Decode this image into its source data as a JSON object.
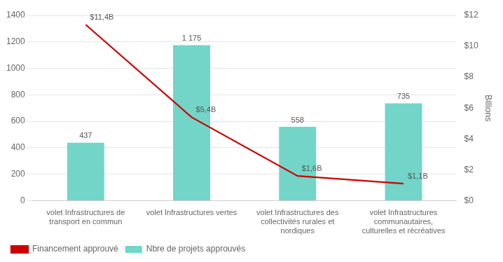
{
  "chart_data": {
    "type": "bar",
    "categories": [
      "volet Infrastructures de\ntransport en commun",
      "volet Infrastructures vertes",
      "volet Infrastructures des\ncollectivités rurales et\nnordiques",
      "volet Infrastructures\ncommunautaires,\nculturelles et récréatives"
    ],
    "series": [
      {
        "name": "Nbre de projets approuvés",
        "type": "bar",
        "color": "#72d5c8",
        "values": [
          437,
          1175,
          558,
          735
        ],
        "value_labels": [
          "437",
          "1 175",
          "558",
          "735"
        ]
      },
      {
        "name": "Financement approuvé",
        "type": "line",
        "color": "#cc0000",
        "axis": "y2",
        "values": [
          11.4,
          5.4,
          1.6,
          1.1
        ],
        "value_labels": [
          "$11,4B",
          "$5,4B",
          "$1,6B",
          "$1,1B"
        ]
      }
    ],
    "ylim": [
      0,
      1400
    ],
    "yticks": [
      0,
      200,
      400,
      600,
      800,
      1000,
      1200,
      1400
    ],
    "y2lim": [
      0,
      12
    ],
    "y2ticks": [
      {
        "value": 0,
        "label": "$0"
      },
      {
        "value": 2,
        "label": "$2"
      },
      {
        "value": 4,
        "label": "$4"
      },
      {
        "value": 6,
        "label": "$6"
      },
      {
        "value": 8,
        "label": "$8"
      },
      {
        "value": 10,
        "label": "$10"
      },
      {
        "value": 12,
        "label": "$12"
      }
    ],
    "y2label": "Billions",
    "grid": true,
    "legend": "bottom",
    "data_labels": true
  }
}
